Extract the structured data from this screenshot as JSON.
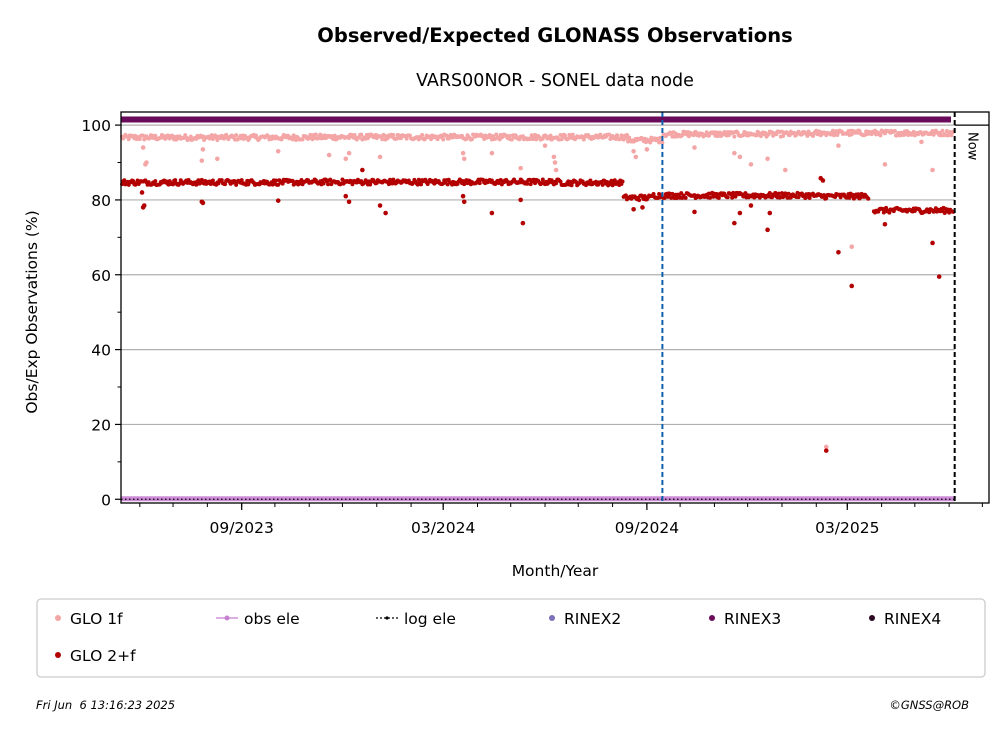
{
  "chart_data": {
    "type": "scatter",
    "title": "Observed/Expected GLONASS Observations",
    "subtitle": "VARS00NOR - SONEL data node",
    "xlabel": "Month/Year",
    "ylabel": "Obs/Exp Observations (%)",
    "x_range": [
      "2023-05-15",
      "2025-07-07"
    ],
    "ylim": [
      -1,
      103.5
    ],
    "y_ticks": [
      0,
      20,
      40,
      60,
      80,
      100
    ],
    "x_ticks": [
      {
        "date": "2023-09-01",
        "label": "09/2023"
      },
      {
        "date": "2024-03-01",
        "label": "03/2024"
      },
      {
        "date": "2024-09-01",
        "label": "09/2024"
      },
      {
        "date": "2025-03-01",
        "label": "03/2025"
      }
    ],
    "grid": "horizontal",
    "rinex3_level": 101.5,
    "obs_ele_level": 0,
    "now_label": "Now",
    "now_date": "2025-06-06",
    "marker_date": "2024-09-15",
    "series": [
      {
        "name": "GLO 1f",
        "color": "#f4a6a6",
        "segments": [
          {
            "start": "2023-05-16",
            "end": "2023-10-31",
            "level": 96.7
          },
          {
            "start": "2023-11-01",
            "end": "2024-04-30",
            "level": 96.8
          },
          {
            "start": "2024-05-01",
            "end": "2024-08-14",
            "level": 96.8
          },
          {
            "start": "2024-08-15",
            "end": "2024-09-15",
            "level": 96.0
          },
          {
            "start": "2024-09-16",
            "end": "2025-01-31",
            "level": 97.6
          },
          {
            "start": "2025-02-01",
            "end": "2025-06-05",
            "level": 97.9
          }
        ],
        "outliers": [
          {
            "date": "2023-06-06",
            "value": 89.5
          },
          {
            "date": "2023-06-07",
            "value": 90.0
          },
          {
            "date": "2023-06-04",
            "value": 94.0
          },
          {
            "date": "2023-07-27",
            "value": 90.5
          },
          {
            "date": "2023-07-28",
            "value": 93.5
          },
          {
            "date": "2023-08-10",
            "value": 91.0
          },
          {
            "date": "2023-10-04",
            "value": 93.0
          },
          {
            "date": "2023-11-19",
            "value": 92.0
          },
          {
            "date": "2023-12-04",
            "value": 91.0
          },
          {
            "date": "2023-12-07",
            "value": 92.5
          },
          {
            "date": "2024-01-04",
            "value": 91.5
          },
          {
            "date": "2024-03-19",
            "value": 92.5
          },
          {
            "date": "2024-03-20",
            "value": 91.0
          },
          {
            "date": "2024-04-14",
            "value": 92.5
          },
          {
            "date": "2024-05-10",
            "value": 88.5
          },
          {
            "date": "2024-06-01",
            "value": 94.5
          },
          {
            "date": "2024-06-09",
            "value": 91.5
          },
          {
            "date": "2024-06-10",
            "value": 90.0
          },
          {
            "date": "2024-06-11",
            "value": 88.0
          },
          {
            "date": "2024-08-20",
            "value": 93.0
          },
          {
            "date": "2024-08-22",
            "value": 91.5
          },
          {
            "date": "2024-09-01",
            "value": 93.5
          },
          {
            "date": "2024-10-14",
            "value": 94.0
          },
          {
            "date": "2024-11-19",
            "value": 92.5
          },
          {
            "date": "2024-11-24",
            "value": 91.5
          },
          {
            "date": "2024-12-04",
            "value": 89.5
          },
          {
            "date": "2024-12-19",
            "value": 91.0
          },
          {
            "date": "2025-01-04",
            "value": 88.0
          },
          {
            "date": "2025-02-10",
            "value": 14.0
          },
          {
            "date": "2025-02-21",
            "value": 94.5
          },
          {
            "date": "2025-03-05",
            "value": 67.5
          },
          {
            "date": "2025-04-04",
            "value": 89.5
          },
          {
            "date": "2025-05-07",
            "value": 95.5
          },
          {
            "date": "2025-05-17",
            "value": 88.0
          }
        ]
      },
      {
        "name": "GLO 2+f",
        "color": "#b30000",
        "segments": [
          {
            "start": "2023-05-16",
            "end": "2023-10-31",
            "level": 84.7
          },
          {
            "start": "2023-11-01",
            "end": "2024-06-15",
            "level": 84.8
          },
          {
            "start": "2024-06-16",
            "end": "2024-08-10",
            "level": 84.6
          },
          {
            "start": "2024-08-11",
            "end": "2024-09-05",
            "level": 80.6
          },
          {
            "start": "2024-09-06",
            "end": "2025-01-31",
            "level": 81.2
          },
          {
            "start": "2025-02-01",
            "end": "2025-03-20",
            "level": 81.0
          },
          {
            "start": "2025-03-25",
            "end": "2025-06-05",
            "level": 77.2
          }
        ],
        "outliers": [
          {
            "date": "2023-06-04",
            "value": 78.0
          },
          {
            "date": "2023-06-05",
            "value": 78.5
          },
          {
            "date": "2023-06-03",
            "value": 82.0
          },
          {
            "date": "2023-07-27",
            "value": 79.5
          },
          {
            "date": "2023-07-28",
            "value": 79.2
          },
          {
            "date": "2023-10-04",
            "value": 79.8
          },
          {
            "date": "2023-12-04",
            "value": 81.0
          },
          {
            "date": "2023-12-07",
            "value": 79.5
          },
          {
            "date": "2023-12-19",
            "value": 88.0
          },
          {
            "date": "2024-01-04",
            "value": 78.5
          },
          {
            "date": "2024-01-09",
            "value": 76.5
          },
          {
            "date": "2024-03-19",
            "value": 81.0
          },
          {
            "date": "2024-03-20",
            "value": 79.5
          },
          {
            "date": "2024-04-14",
            "value": 76.5
          },
          {
            "date": "2024-05-10",
            "value": 80.0
          },
          {
            "date": "2024-05-12",
            "value": 73.8
          },
          {
            "date": "2024-08-20",
            "value": 77.5
          },
          {
            "date": "2024-08-28",
            "value": 78.0
          },
          {
            "date": "2024-10-14",
            "value": 76.8
          },
          {
            "date": "2024-11-19",
            "value": 73.8
          },
          {
            "date": "2024-11-24",
            "value": 76.5
          },
          {
            "date": "2024-12-04",
            "value": 78.5
          },
          {
            "date": "2024-12-19",
            "value": 72.0
          },
          {
            "date": "2024-12-21",
            "value": 76.5
          },
          {
            "date": "2025-02-05",
            "value": 85.8
          },
          {
            "date": "2025-02-07",
            "value": 85.2
          },
          {
            "date": "2025-02-10",
            "value": 13.0
          },
          {
            "date": "2025-02-21",
            "value": 66.0
          },
          {
            "date": "2025-03-05",
            "value": 57.0
          },
          {
            "date": "2025-04-04",
            "value": 73.5
          },
          {
            "date": "2025-05-17",
            "value": 68.5
          },
          {
            "date": "2025-05-23",
            "value": 59.5
          }
        ]
      }
    ],
    "legend": [
      {
        "label": "GLO 1f",
        "kind": "dot",
        "color": "#f4a6a6"
      },
      {
        "label": "obs ele",
        "kind": "line",
        "color": "#c77fd1"
      },
      {
        "label": "log ele",
        "kind": "dashline",
        "color": "#000000"
      },
      {
        "label": "RINEX2",
        "kind": "dot",
        "color": "#7d6fb8"
      },
      {
        "label": "RINEX3",
        "kind": "dot",
        "color": "#6a0a5a"
      },
      {
        "label": "RINEX4",
        "kind": "dot",
        "color": "#2a0820"
      },
      {
        "label": "GLO 2+f",
        "kind": "dot",
        "color": "#b30000"
      }
    ]
  },
  "footer": {
    "timestamp": "Fri Jun  6 13:16:23 2025",
    "credit": "©GNSS@ROB"
  },
  "colors": {
    "grid": "#b0b0b0",
    "marker_line": "#1060b0",
    "rinex3": "#6a0a5a",
    "obs_ele": "#c77fd1"
  }
}
